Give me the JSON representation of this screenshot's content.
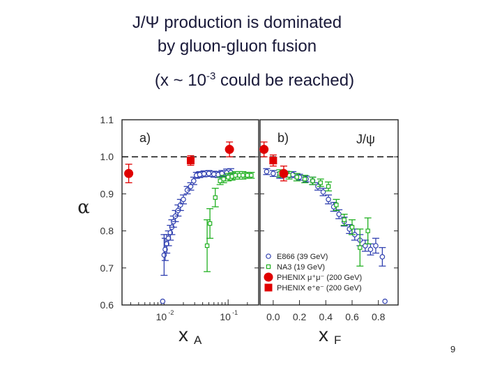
{
  "slide": {
    "title_line1": "J/Ψ production is dominated",
    "title_line2": "by gluon-gluon fusion",
    "subtitle_prefix": "(x ~ 10",
    "subtitle_exp": "-3",
    "subtitle_suffix": " could be reached)",
    "page_number": "9"
  },
  "chart_data": {
    "type": "scatter",
    "ylabel": "α",
    "ylim": [
      0.6,
      1.1
    ],
    "yticks": [
      "0.6",
      "0.7",
      "0.8",
      "0.9",
      "1.0",
      "1.1"
    ],
    "reference_line": 1.0,
    "colors": {
      "E866": "#3040b0",
      "NA3": "#20b020",
      "PHENIX_mumu": "#e00000",
      "PHENIX_ee": "#e00000"
    },
    "panels": [
      {
        "id": "a",
        "panel_label": "a)",
        "xscale": "log",
        "xlabel_base": "x",
        "xlabel_sub": "A",
        "xlim": [
          0.0022,
          0.3
        ],
        "xticks": [
          {
            "value": 0.01,
            "base": "10",
            "exp": "-2"
          },
          {
            "value": 0.1,
            "base": "10",
            "exp": "-1"
          }
        ],
        "series": [
          {
            "key": "E866",
            "marker": "open-circle",
            "points": [
              [
                0.0095,
                0.61,
                0.0
              ],
              [
                0.01,
                0.735,
                0.055
              ],
              [
                0.0104,
                0.75,
                0.03
              ],
              [
                0.011,
                0.765,
                0.025
              ],
              [
                0.0117,
                0.78,
                0.02
              ],
              [
                0.0125,
                0.795,
                0.02
              ],
              [
                0.0132,
                0.81,
                0.02
              ],
              [
                0.014,
                0.825,
                0.015
              ],
              [
                0.015,
                0.84,
                0.015
              ],
              [
                0.0165,
                0.855,
                0.015
              ],
              [
                0.018,
                0.87,
                0.015
              ],
              [
                0.02,
                0.885,
                0.012
              ],
              [
                0.023,
                0.91,
                0.01
              ],
              [
                0.026,
                0.92,
                0.01
              ],
              [
                0.029,
                0.935,
                0.01
              ],
              [
                0.032,
                0.95,
                0.008
              ],
              [
                0.036,
                0.952,
                0.008
              ],
              [
                0.042,
                0.954,
                0.008
              ],
              [
                0.05,
                0.955,
                0.008
              ],
              [
                0.06,
                0.953,
                0.008
              ],
              [
                0.07,
                0.952,
                0.008
              ],
              [
                0.08,
                0.955,
                0.008
              ],
              [
                0.095,
                0.957,
                0.01
              ],
              [
                0.11,
                0.958,
                0.01
              ]
            ]
          },
          {
            "key": "NA3",
            "marker": "open-square",
            "points": [
              [
                0.047,
                0.76,
                0.07
              ],
              [
                0.052,
                0.82,
                0.04
              ],
              [
                0.063,
                0.89,
                0.025
              ],
              [
                0.075,
                0.935,
                0.01
              ],
              [
                0.085,
                0.94,
                0.01
              ],
              [
                0.1,
                0.945,
                0.01
              ],
              [
                0.115,
                0.947,
                0.01
              ],
              [
                0.13,
                0.95,
                0.01
              ],
              [
                0.15,
                0.95,
                0.01
              ],
              [
                0.17,
                0.95,
                0.01
              ],
              [
                0.2,
                0.95,
                0.008
              ],
              [
                0.23,
                0.95,
                0.008
              ]
            ]
          },
          {
            "key": "PHENIX_mumu",
            "marker": "filled-circle",
            "points": [
              [
                0.0028,
                0.955,
                0.025
              ],
              [
                0.105,
                1.02,
                0.02
              ]
            ]
          },
          {
            "key": "PHENIX_ee",
            "marker": "filled-square",
            "points": [
              [
                0.026,
                0.99,
                0.013
              ]
            ]
          }
        ]
      },
      {
        "id": "b",
        "panel_label": "b)",
        "series_label": "J/ψ",
        "xscale": "linear",
        "xlabel_base": "x",
        "xlabel_sub": "F",
        "xlim": [
          -0.1,
          0.95
        ],
        "xticks": [
          {
            "value": 0.0,
            "base": "0.0"
          },
          {
            "value": 0.2,
            "base": "0.2"
          },
          {
            "value": 0.4,
            "base": "0.4"
          },
          {
            "value": 0.6,
            "base": "0.6"
          },
          {
            "value": 0.8,
            "base": "0.8"
          }
        ],
        "legend": [
          {
            "key": "E866",
            "marker": "open-circle",
            "label": "E866 (39 GeV)"
          },
          {
            "key": "NA3",
            "marker": "open-square",
            "label": "NA3 (19 GeV)"
          },
          {
            "key": "PHENIX_mumu",
            "marker": "filled-circle",
            "label": "PHENIX μ⁺μ⁻ (200 GeV)"
          },
          {
            "key": "PHENIX_ee",
            "marker": "filled-square",
            "label": "PHENIX e⁺e⁻ (200 GeV)"
          }
        ],
        "series": [
          {
            "key": "E866",
            "marker": "open-circle",
            "points": [
              [
                -0.05,
                0.96,
                0.008
              ],
              [
                0.0,
                0.955,
                0.008
              ],
              [
                0.05,
                0.95,
                0.008
              ],
              [
                0.1,
                0.953,
                0.008
              ],
              [
                0.15,
                0.952,
                0.008
              ],
              [
                0.2,
                0.945,
                0.008
              ],
              [
                0.25,
                0.94,
                0.008
              ],
              [
                0.3,
                0.935,
                0.01
              ],
              [
                0.34,
                0.92,
                0.01
              ],
              [
                0.38,
                0.905,
                0.01
              ],
              [
                0.42,
                0.885,
                0.012
              ],
              [
                0.46,
                0.865,
                0.012
              ],
              [
                0.5,
                0.845,
                0.012
              ],
              [
                0.54,
                0.825,
                0.012
              ],
              [
                0.58,
                0.805,
                0.012
              ],
              [
                0.62,
                0.79,
                0.015
              ],
              [
                0.66,
                0.775,
                0.015
              ],
              [
                0.7,
                0.76,
                0.015
              ],
              [
                0.74,
                0.75,
                0.015
              ],
              [
                0.78,
                0.76,
                0.02
              ],
              [
                0.83,
                0.73,
                0.025
              ],
              [
                0.85,
                0.61,
                0.0
              ]
            ]
          },
          {
            "key": "NA3",
            "marker": "open-square",
            "points": [
              [
                0.05,
                0.955,
                0.01
              ],
              [
                0.12,
                0.95,
                0.01
              ],
              [
                0.18,
                0.945,
                0.01
              ],
              [
                0.24,
                0.94,
                0.01
              ],
              [
                0.3,
                0.935,
                0.01
              ],
              [
                0.36,
                0.93,
                0.01
              ],
              [
                0.42,
                0.92,
                0.012
              ],
              [
                0.48,
                0.87,
                0.015
              ],
              [
                0.54,
                0.83,
                0.015
              ],
              [
                0.6,
                0.81,
                0.02
              ],
              [
                0.66,
                0.755,
                0.05
              ],
              [
                0.72,
                0.8,
                0.035
              ]
            ]
          },
          {
            "key": "PHENIX_mumu",
            "marker": "filled-circle",
            "points": [
              [
                -0.07,
                1.02,
                0.02
              ],
              [
                0.08,
                0.955,
                0.02
              ]
            ]
          },
          {
            "key": "PHENIX_ee",
            "marker": "filled-square",
            "points": [
              [
                0.0,
                0.99,
                0.015
              ]
            ]
          }
        ]
      }
    ]
  }
}
